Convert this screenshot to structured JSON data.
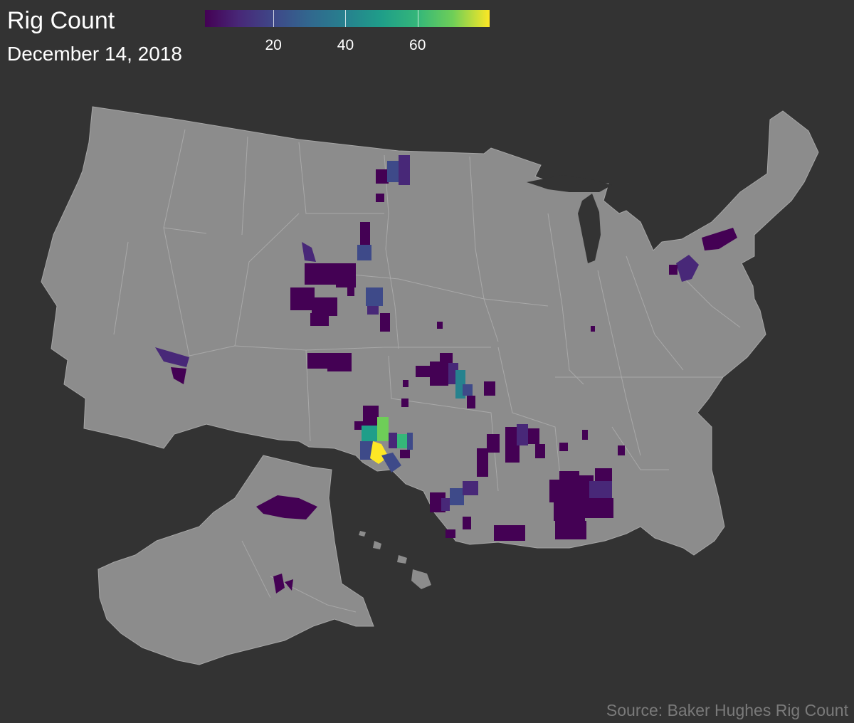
{
  "title": "Rig Count",
  "subtitle": "December 14, 2018",
  "legend": {
    "ticks": [
      {
        "value": 20,
        "label": "20"
      },
      {
        "value": 40,
        "label": "40"
      },
      {
        "value": 60,
        "label": "60"
      }
    ],
    "min": 1,
    "max": 80,
    "colormap": "viridis"
  },
  "source": "Source: Baker Hughes Rig Count",
  "colors": {
    "background": "#333333",
    "land": "#8c8c8c",
    "boundary": "#a6a6a6",
    "water": "#333333"
  }
}
